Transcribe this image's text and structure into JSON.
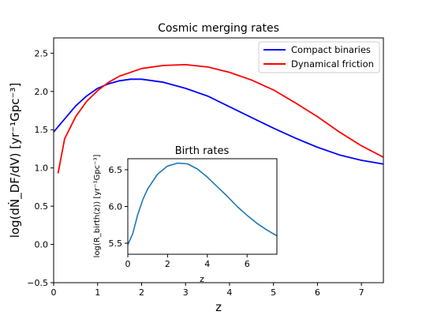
{
  "chart_data": [
    {
      "type": "line",
      "title": "Cosmic merging rates",
      "xlabel": "z",
      "ylabel": "log(dṄ_DF/dV) [yr⁻¹Gpc⁻³]",
      "xlim": [
        0,
        7.5
      ],
      "ylim": [
        -0.5,
        2.7
      ],
      "xticks": [
        0,
        1,
        2,
        3,
        4,
        5,
        6,
        7
      ],
      "yticks": [
        -0.5,
        0.0,
        0.5,
        1.0,
        1.5,
        2.0,
        2.5
      ],
      "xtick_labels": [
        "0",
        "1",
        "2",
        "3",
        "4",
        "5",
        "6",
        "7"
      ],
      "ytick_labels": [
        "−0.5",
        "0.0",
        "0.5",
        "1.0",
        "1.5",
        "2.0",
        "2.5"
      ],
      "grid": false,
      "legend_position": "top-right",
      "series": [
        {
          "name": "Compact binaries",
          "color": "#0000ff",
          "x": [
            0.0,
            0.25,
            0.5,
            0.75,
            1.0,
            1.25,
            1.5,
            1.75,
            2.0,
            2.5,
            3.0,
            3.5,
            4.0,
            4.5,
            5.0,
            5.5,
            6.0,
            6.5,
            7.0,
            7.5
          ],
          "y": [
            1.47,
            1.64,
            1.81,
            1.94,
            2.04,
            2.1,
            2.14,
            2.16,
            2.16,
            2.12,
            2.04,
            1.94,
            1.8,
            1.66,
            1.52,
            1.39,
            1.27,
            1.17,
            1.1,
            1.05
          ]
        },
        {
          "name": "Dynamical friction",
          "color": "#ff0000",
          "x": [
            0.1,
            0.25,
            0.5,
            0.75,
            1.0,
            1.25,
            1.5,
            2.0,
            2.5,
            3.0,
            3.5,
            4.0,
            4.5,
            5.0,
            5.5,
            6.0,
            6.5,
            7.0,
            7.5
          ],
          "y": [
            0.93,
            1.38,
            1.67,
            1.87,
            2.01,
            2.12,
            2.2,
            2.3,
            2.34,
            2.35,
            2.32,
            2.25,
            2.15,
            2.02,
            1.85,
            1.67,
            1.47,
            1.29,
            1.14
          ]
        }
      ]
    },
    {
      "type": "line",
      "title": "Birth rates",
      "xlabel": "z",
      "ylabel": "log(R_birth(z)) [yr⁻¹Gpc⁻³]",
      "xlim": [
        0,
        7.5
      ],
      "ylim": [
        5.35,
        6.65
      ],
      "xticks": [
        0,
        2,
        4,
        6
      ],
      "yticks": [
        5.5,
        6.0,
        6.5
      ],
      "xtick_labels": [
        "0",
        "2",
        "4",
        "6"
      ],
      "ytick_labels": [
        "5.5",
        "6.0",
        "6.5"
      ],
      "grid": false,
      "series": [
        {
          "color": "#1f77b4",
          "x": [
            0.0,
            0.25,
            0.5,
            0.75,
            1.0,
            1.5,
            2.0,
            2.5,
            3.0,
            3.5,
            4.0,
            4.5,
            5.0,
            5.5,
            6.0,
            6.5,
            7.0,
            7.5
          ],
          "y": [
            5.48,
            5.63,
            5.89,
            6.09,
            6.24,
            6.44,
            6.55,
            6.59,
            6.58,
            6.51,
            6.4,
            6.27,
            6.14,
            6.0,
            5.88,
            5.77,
            5.68,
            5.6
          ]
        }
      ]
    }
  ]
}
